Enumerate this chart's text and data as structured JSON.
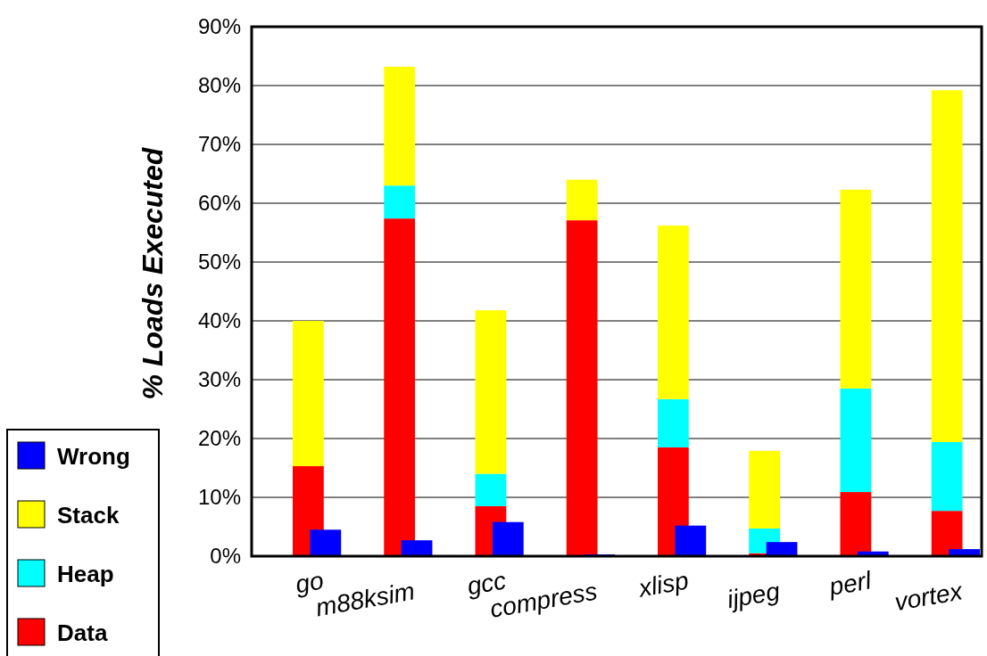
{
  "chart_data": [
    {
      "type": "bar",
      "ylabel": "% Loads Executed",
      "categories": [
        "go",
        "m88ksim",
        "gcc",
        "compress",
        "xlisp",
        "ijpeg",
        "perl",
        "vortex"
      ],
      "series": [
        {
          "name": "Data",
          "color": "#ff0000",
          "values": [
            15.3,
            57.4,
            8.5,
            57.1,
            18.5,
            0.5,
            10.9,
            7.7
          ]
        },
        {
          "name": "Heap",
          "color": "#00ffff",
          "values": [
            0,
            5.6,
            5.5,
            0,
            8.2,
            4.2,
            17.6,
            11.7
          ]
        },
        {
          "name": "Stack",
          "color": "#ffff00",
          "values": [
            24.7,
            20.2,
            27.8,
            6.9,
            29.5,
            13.2,
            33.8,
            59.8
          ]
        }
      ],
      "stacked": true,
      "ylim": [
        0,
        90
      ],
      "yticks": [
        {
          "value": 0,
          "label": "0%"
        },
        {
          "value": 10,
          "label": "10%"
        },
        {
          "value": 20,
          "label": "20%"
        },
        {
          "value": 30,
          "label": "30%"
        },
        {
          "value": 40,
          "label": "40%"
        },
        {
          "value": 50,
          "label": "50%"
        },
        {
          "value": 60,
          "label": "60%"
        },
        {
          "value": 70,
          "label": "70%"
        },
        {
          "value": 80,
          "label": "80%"
        },
        {
          "value": 90,
          "label": "90%"
        }
      ],
      "grid": "y",
      "legend": "bottom left"
    },
    {
      "type": "bar",
      "categories": [
        "go",
        "m88ksim",
        "gcc",
        "compress",
        "xlisp",
        "ijpeg",
        "perl",
        "vortex"
      ],
      "series": [
        {
          "name": "Wrong",
          "color": "#0000ff",
          "values": [
            4.5,
            2.7,
            5.8,
            0.3,
            5.2,
            2.4,
            0.8,
            1.2
          ]
        }
      ],
      "ylim": [
        0,
        90
      ],
      "tick_labels": false,
      "legend": "bottom left"
    }
  ]
}
